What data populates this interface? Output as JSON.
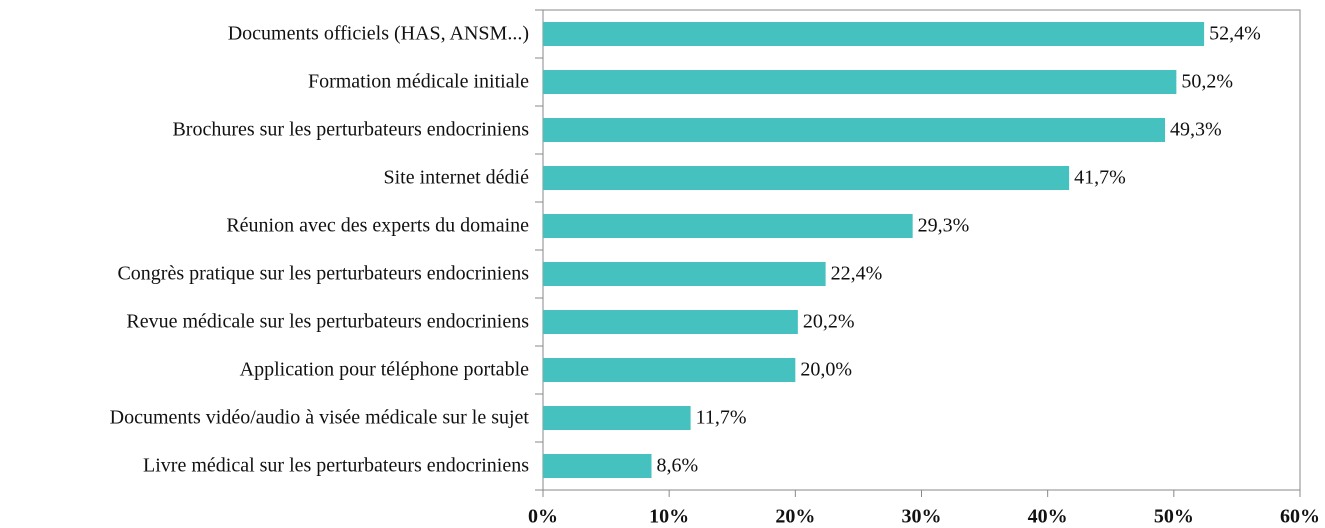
{
  "chart_data": {
    "type": "bar",
    "orientation": "horizontal",
    "categories": [
      "Documents officiels (HAS, ANSM...)",
      "Formation médicale initiale",
      "Brochures sur les perturbateurs endocriniens",
      "Site internet dédié",
      "Réunion avec des experts du domaine",
      "Congrès pratique sur les perturbateurs endocriniens",
      "Revue médicale sur les perturbateurs endocriniens",
      "Application pour téléphone portable",
      "Documents vidéo/audio à visée médicale sur le sujet",
      "Livre médical sur les perturbateurs endocriniens"
    ],
    "values": [
      52.4,
      50.2,
      49.3,
      41.7,
      29.3,
      22.4,
      20.2,
      20.0,
      11.7,
      8.6
    ],
    "value_labels": [
      "52,4%",
      "50,2%",
      "49,3%",
      "41,7%",
      "29,3%",
      "22,4%",
      "20,2%",
      "20,0%",
      "11,7%",
      "8,6%"
    ],
    "color": "#45c1c0",
    "xlim": [
      0,
      60
    ],
    "xticks": [
      {
        "value": 0,
        "label": "0%"
      },
      {
        "value": 10,
        "label": "10%"
      },
      {
        "value": 20,
        "label": "20%"
      },
      {
        "value": 30,
        "label": "30%"
      },
      {
        "value": 40,
        "label": "40%"
      },
      {
        "value": 50,
        "label": "50%"
      },
      {
        "value": 60,
        "label": "60%"
      }
    ]
  }
}
